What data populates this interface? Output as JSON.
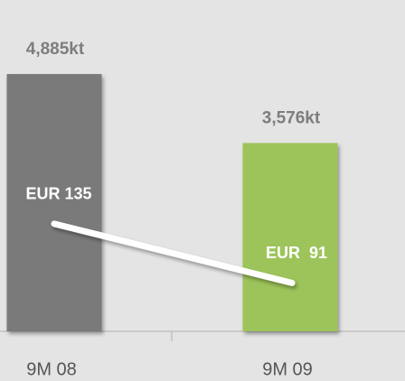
{
  "chart_data": {
    "type": "combo",
    "categories": [
      "9M 08",
      "9M 09"
    ],
    "series": [
      {
        "type": "bar",
        "values": [
          4885,
          3576
        ],
        "value_labels": [
          "4,885kt",
          "3,576kt"
        ],
        "colors": [
          "#7a7a7a",
          "#9dc45a"
        ]
      },
      {
        "type": "line",
        "axis": "y2",
        "values": [
          135,
          91
        ],
        "value_labels": [
          "EUR 135",
          "EUR  91"
        ],
        "color": "#ffffff"
      }
    ],
    "ylim": [
      0,
      6000
    ],
    "y2lim": [
      55,
      290
    ]
  }
}
